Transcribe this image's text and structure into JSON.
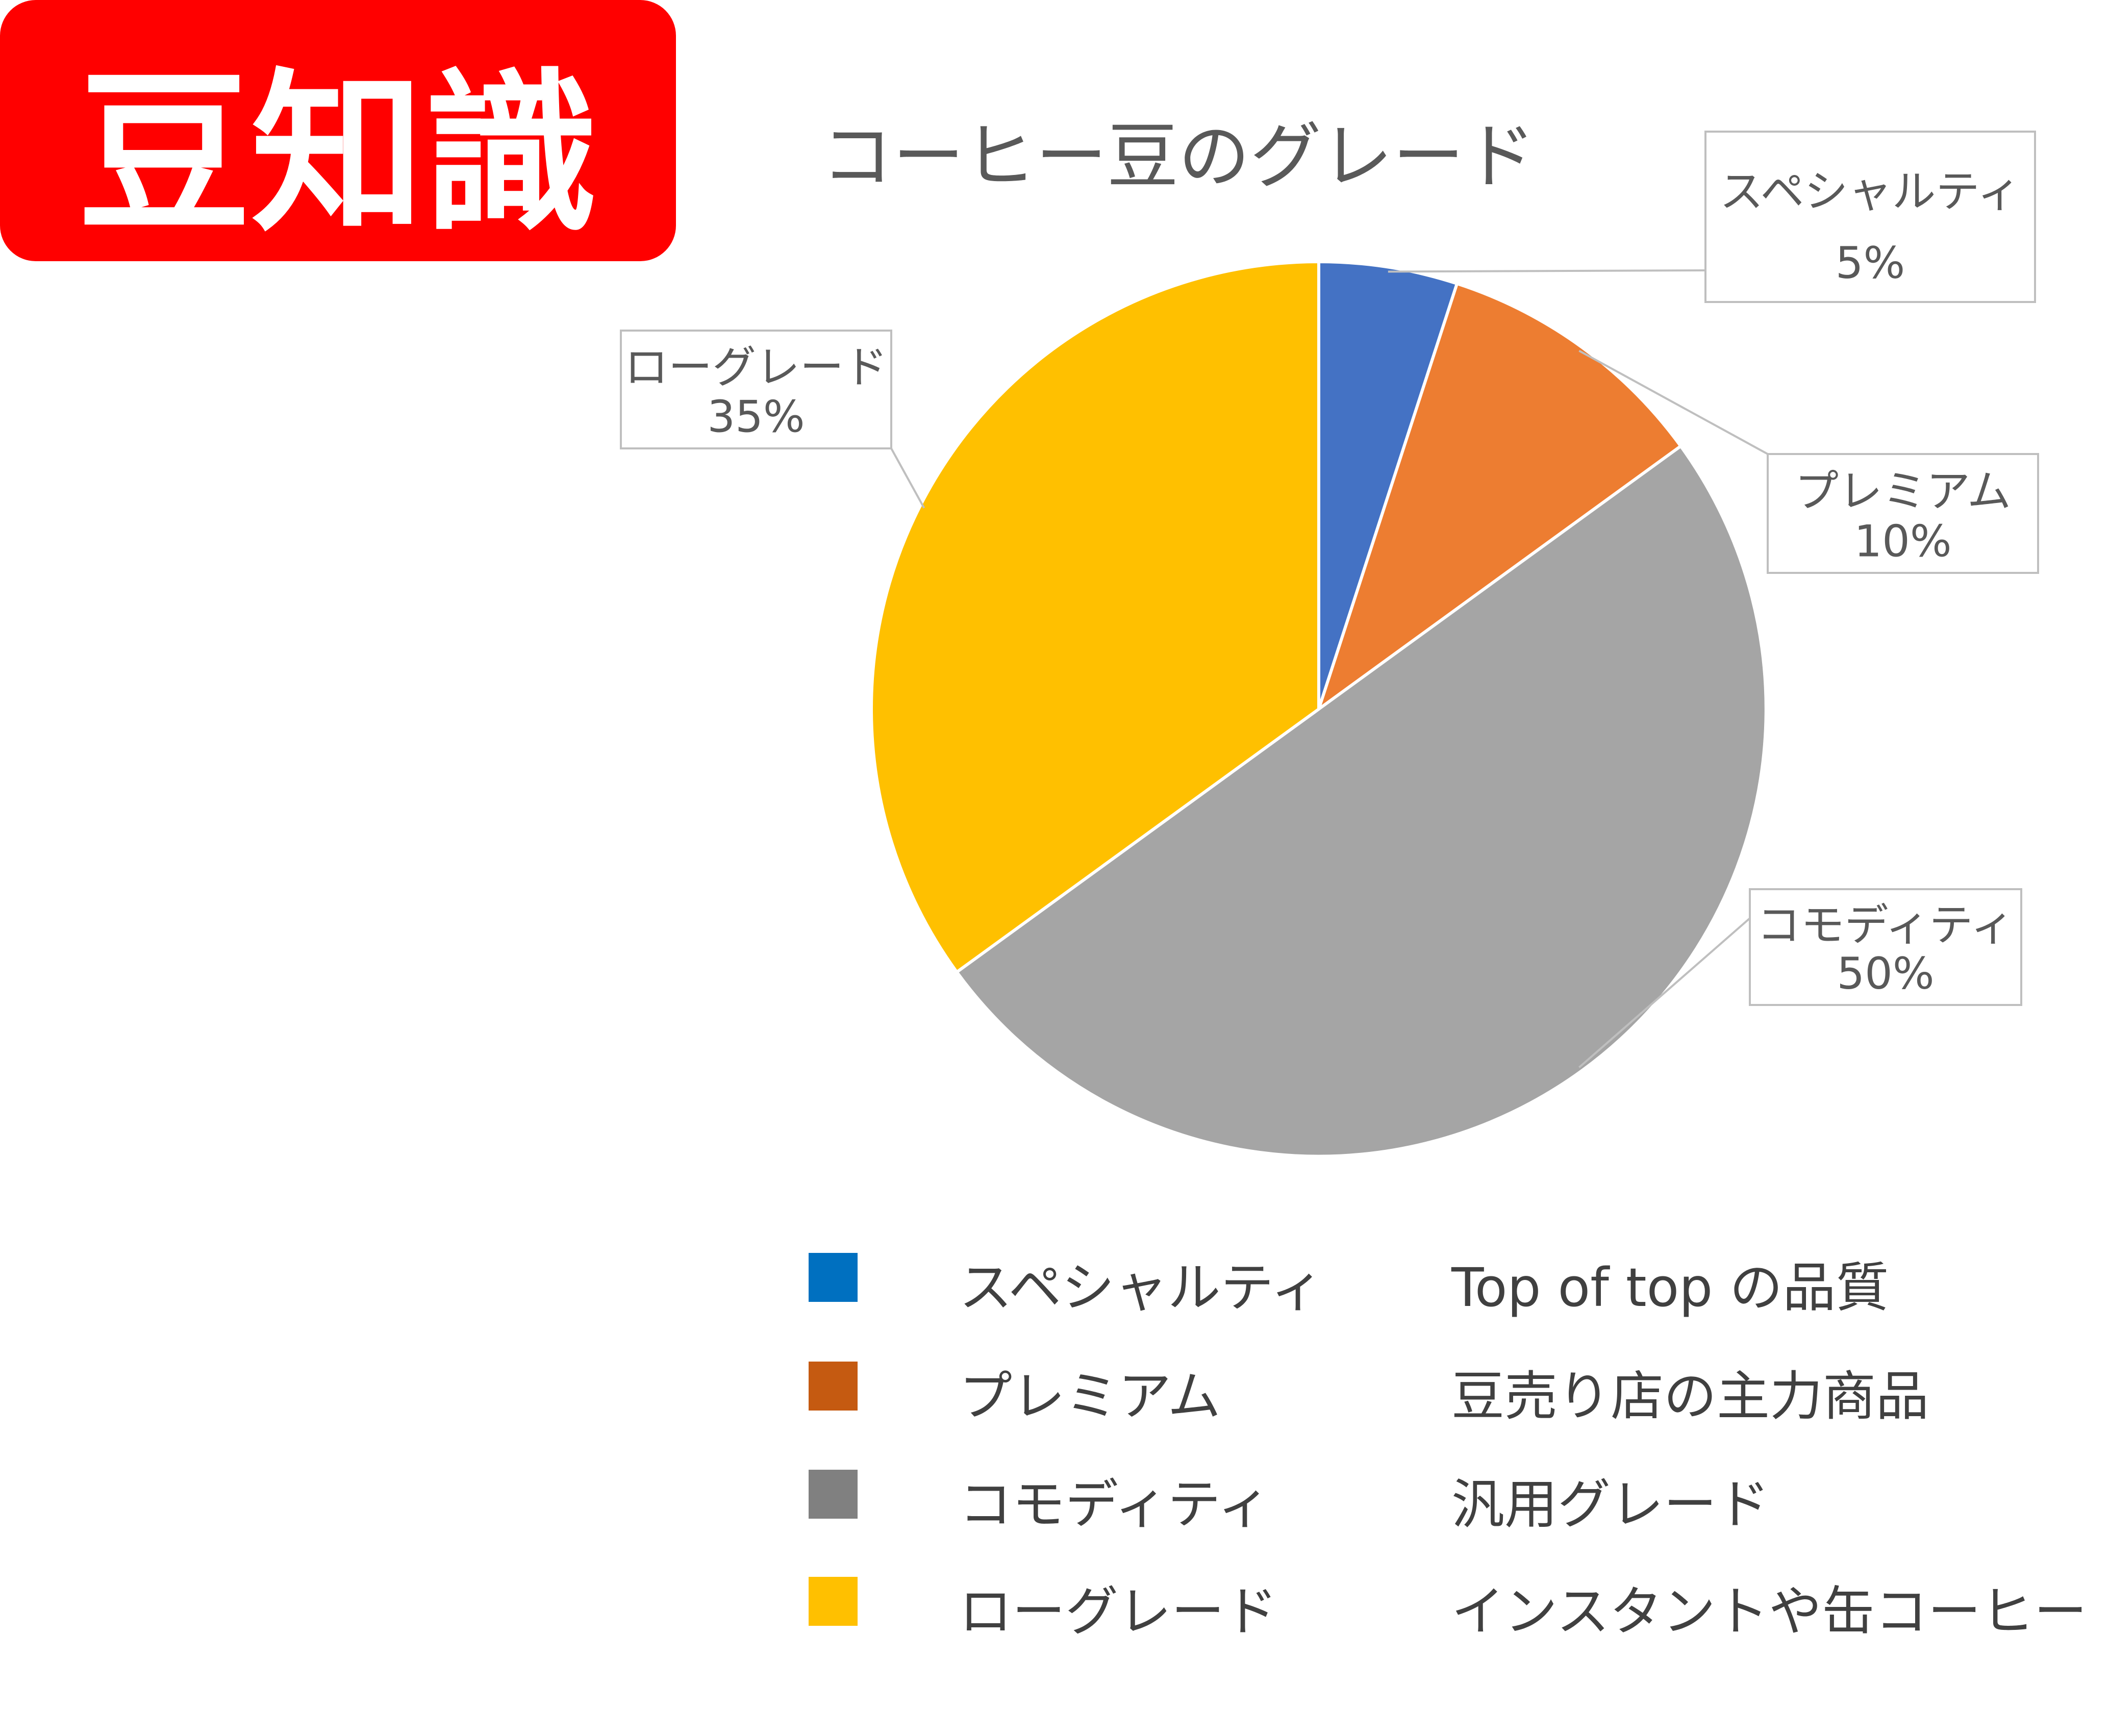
{
  "badge": {
    "text": "豆知識",
    "bg_color": "#FF0000",
    "text_color": "#FFFFFF"
  },
  "chart_data": {
    "type": "pie",
    "title": "コーヒー豆のグレード",
    "start": "top, clockwise",
    "slices": [
      {
        "label": "スペシャルティ",
        "value": 5,
        "value_label": "5%",
        "color": "#4472C4"
      },
      {
        "label": "プレミアム",
        "value": 10,
        "value_label": "10%",
        "color": "#ED7D31"
      },
      {
        "label": "コモディティ",
        "value": 50,
        "value_label": "50%",
        "color": "#A5A5A5"
      },
      {
        "label": "ローグレード",
        "value": 35,
        "value_label": "35%",
        "color": "#FFC000"
      }
    ],
    "data_labels": "callout boxes with category name and percentage",
    "text_color": "#595959"
  },
  "legend_table": {
    "rows": [
      {
        "swatch_color": "#0070C0",
        "grade": "スペシャルティ",
        "description": "Top of top の品質"
      },
      {
        "swatch_color": "#C55A11",
        "grade": "プレミアム",
        "description": "豆売り店の主力商品"
      },
      {
        "swatch_color": "#808080",
        "grade": "コモディティ",
        "description": "汎用グレード"
      },
      {
        "swatch_color": "#FFC000",
        "grade": "ローグレード",
        "description": "インスタントや缶コーヒー"
      }
    ],
    "text_color": "#404040"
  }
}
